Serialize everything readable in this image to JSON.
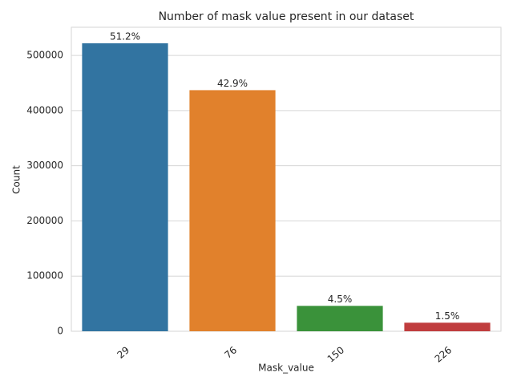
{
  "chart_data": {
    "type": "bar",
    "title": "Number of mask value present in our dataset",
    "x_label": "Mask_value",
    "y_label": "Count",
    "categories": [
      "29",
      "76",
      "150",
      "226"
    ],
    "values": [
      522000,
      437000,
      46000,
      15500
    ],
    "annotations": [
      "51.2%",
      "42.9%",
      "4.5%",
      "1.5%"
    ],
    "colors": [
      "#3274a1",
      "#e1812c",
      "#3a923a",
      "#c03d3e"
    ],
    "ylim": [
      0,
      551000
    ],
    "yticks": [
      0,
      100000,
      200000,
      300000,
      400000,
      500000
    ],
    "grid": true
  }
}
